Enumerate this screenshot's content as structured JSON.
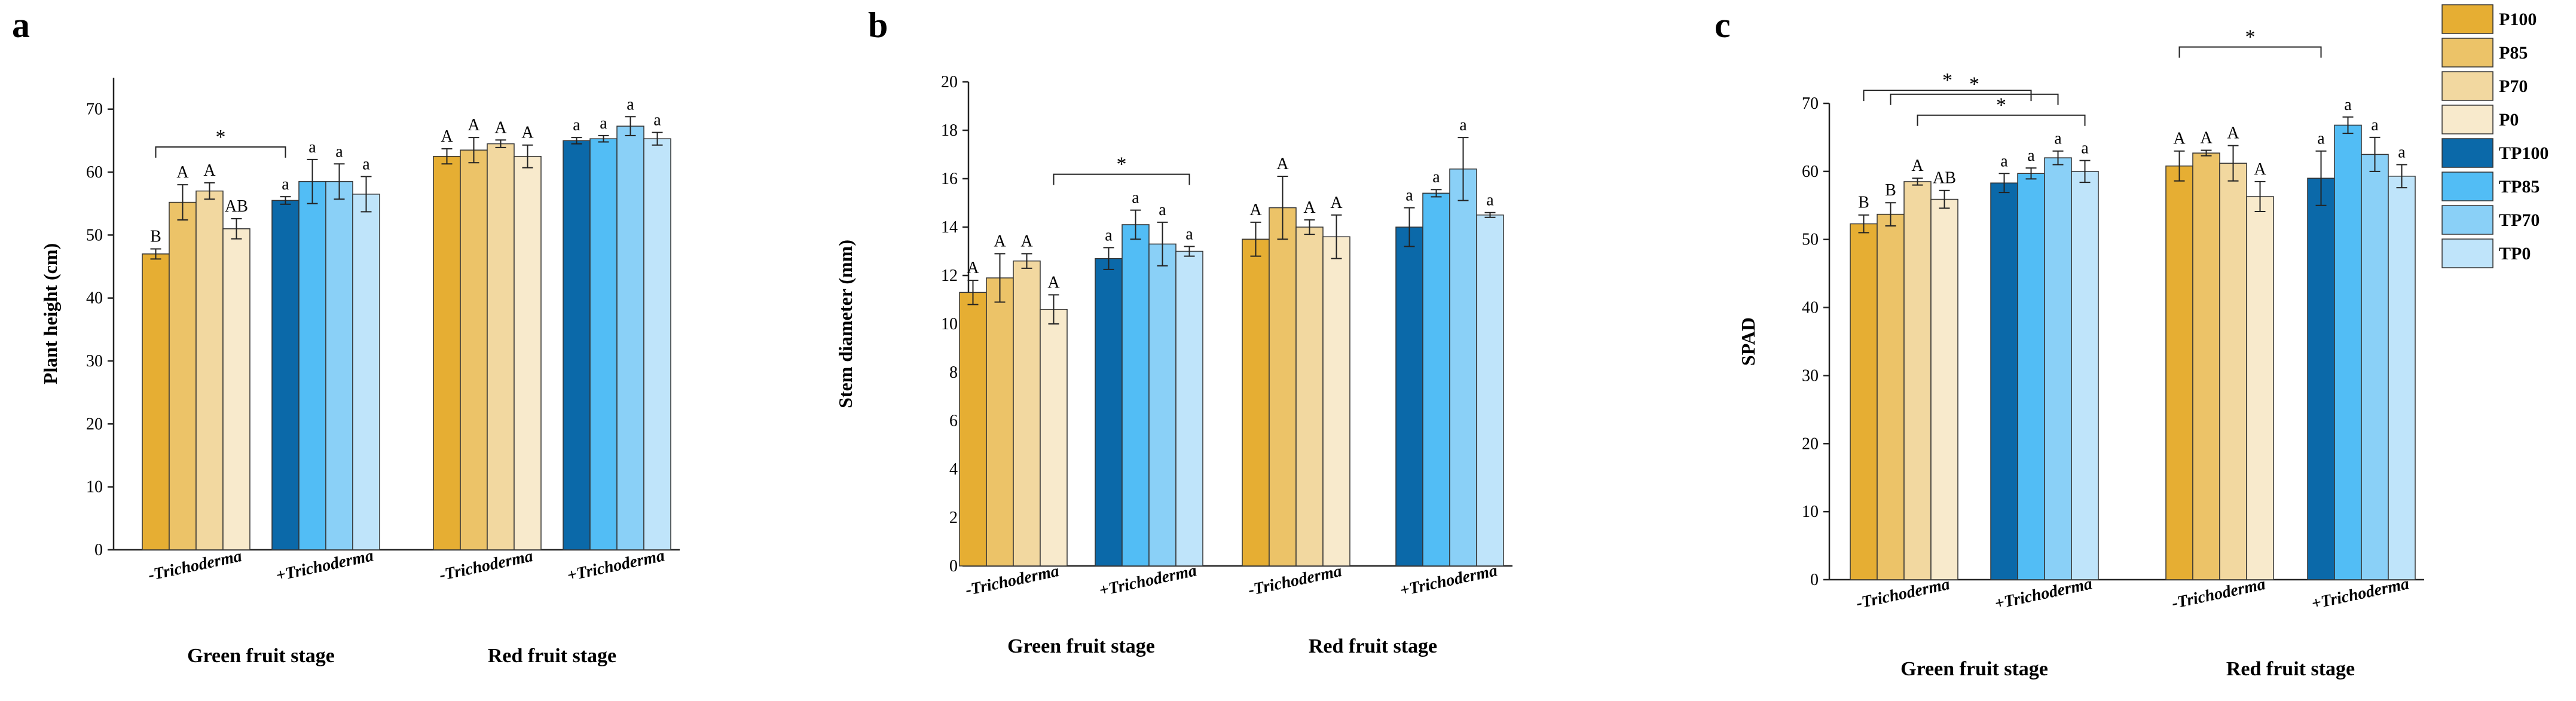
{
  "colors": {
    "P100": "#E6AE33",
    "P85": "#ECC368",
    "P70": "#F2D8A0",
    "P0": "#F8EACC",
    "TP100": "#0B69A9",
    "TP85": "#52BDF5",
    "TP70": "#8AD0F7",
    "TP0": "#BFE4FA"
  },
  "legend": [
    {
      "label": "P100",
      "key": "P100"
    },
    {
      "label": "P85",
      "key": "P85"
    },
    {
      "label": "P70",
      "key": "P70"
    },
    {
      "label": "P0",
      "key": "P0"
    },
    {
      "label": "TP100",
      "key": "TP100"
    },
    {
      "label": "TP85",
      "key": "TP85"
    },
    {
      "label": "TP70",
      "key": "TP70"
    },
    {
      "label": "TP0",
      "key": "TP0"
    }
  ],
  "chart_data": [
    {
      "panel": "a",
      "type": "bar",
      "ylabel": "Plant height (cm)",
      "ylim": [
        0,
        75
      ],
      "yticks": [
        0,
        10,
        20,
        30,
        40,
        50,
        60,
        70
      ],
      "stages": [
        "Green fruit stage",
        "Red fruit stage"
      ],
      "groups": [
        {
          "stage": 0,
          "label": "-Trichoderma",
          "series": [
            "P100",
            "P85",
            "P70",
            "P0"
          ],
          "values": [
            47,
            55.2,
            57,
            51
          ],
          "errors": [
            0.8,
            2.8,
            1.3,
            1.6
          ],
          "letters": [
            "B",
            "A",
            "A",
            "AB"
          ]
        },
        {
          "stage": 0,
          "label": "+Trichoderma",
          "series": [
            "TP100",
            "TP85",
            "TP70",
            "TP0"
          ],
          "values": [
            55.5,
            58.5,
            58.5,
            56.5
          ],
          "errors": [
            0.6,
            3.5,
            2.8,
            2.8
          ],
          "letters": [
            "a",
            "a",
            "a",
            "a"
          ]
        },
        {
          "stage": 1,
          "label": "-Trichoderma",
          "series": [
            "P100",
            "P85",
            "P70",
            "P0"
          ],
          "values": [
            62.5,
            63.5,
            64.5,
            62.5
          ],
          "errors": [
            1.2,
            2.0,
            0.6,
            1.8
          ],
          "letters": [
            "A",
            "A",
            "A",
            "A"
          ]
        },
        {
          "stage": 1,
          "label": "+Trichoderma",
          "series": [
            "TP100",
            "TP85",
            "TP70",
            "TP0"
          ],
          "values": [
            65,
            65.3,
            67.3,
            65.3
          ],
          "errors": [
            0.5,
            0.5,
            1.5,
            1.0
          ],
          "letters": [
            "a",
            "a",
            "a",
            "a"
          ]
        }
      ],
      "sig": [
        {
          "from": [
            0,
            0
          ],
          "to": [
            1,
            0
          ],
          "label": "*"
        }
      ]
    },
    {
      "panel": "b",
      "type": "bar",
      "ylabel": "Stem diameter (mm)",
      "ylim": [
        0,
        20
      ],
      "yticks": [
        0,
        2,
        4,
        6,
        8,
        10,
        12,
        14,
        16,
        18,
        20
      ],
      "stages": [
        "Green fruit stage",
        "Red fruit stage"
      ],
      "groups": [
        {
          "stage": 0,
          "label": "-Trichoderma",
          "series": [
            "P100",
            "P85",
            "P70",
            "P0"
          ],
          "values": [
            11.3,
            11.9,
            12.6,
            10.6
          ],
          "errors": [
            0.5,
            1.0,
            0.3,
            0.6
          ],
          "letters": [
            "A",
            "A",
            "A",
            "A"
          ]
        },
        {
          "stage": 0,
          "label": "+Trichoderma",
          "series": [
            "TP100",
            "TP85",
            "TP70",
            "TP0"
          ],
          "values": [
            12.7,
            14.1,
            13.3,
            13.0
          ],
          "errors": [
            0.45,
            0.6,
            0.9,
            0.2
          ],
          "letters": [
            "a",
            "a",
            "a",
            "a"
          ]
        },
        {
          "stage": 1,
          "label": "-Trichoderma",
          "series": [
            "P100",
            "P85",
            "P70",
            "P0"
          ],
          "values": [
            13.5,
            14.8,
            14.0,
            13.6
          ],
          "errors": [
            0.7,
            1.3,
            0.3,
            0.9
          ],
          "letters": [
            "A",
            "A",
            "A",
            "A"
          ]
        },
        {
          "stage": 1,
          "label": "+Trichoderma",
          "series": [
            "TP100",
            "TP85",
            "TP70",
            "TP0"
          ],
          "values": [
            14.0,
            15.4,
            16.4,
            14.5
          ],
          "errors": [
            0.8,
            0.15,
            1.3,
            0.1
          ],
          "letters": [
            "a",
            "a",
            "a",
            "a"
          ]
        }
      ],
      "sig": [
        {
          "from": [
            0,
            3
          ],
          "to": [
            1,
            3
          ],
          "label": "*"
        }
      ]
    },
    {
      "panel": "c",
      "type": "bar",
      "ylabel": "SPAD",
      "ylim": [
        0,
        70
      ],
      "yticks": [
        0,
        10,
        20,
        30,
        40,
        50,
        60,
        70
      ],
      "stages": [
        "Green fruit stage",
        "Red fruit stage"
      ],
      "groups": [
        {
          "stage": 0,
          "label": "-Trichoderma",
          "series": [
            "P100",
            "P85",
            "P70",
            "P0"
          ],
          "values": [
            52.3,
            53.7,
            58.5,
            55.9
          ],
          "errors": [
            1.3,
            1.7,
            0.5,
            1.3
          ],
          "letters": [
            "B",
            "B",
            "A",
            "AB"
          ]
        },
        {
          "stage": 0,
          "label": "+Trichoderma",
          "series": [
            "TP100",
            "TP85",
            "TP70",
            "TP0"
          ],
          "values": [
            58.3,
            59.7,
            62.0,
            60.0
          ],
          "errors": [
            1.4,
            0.8,
            1.0,
            1.6
          ],
          "letters": [
            "a",
            "a",
            "a",
            "a"
          ]
        },
        {
          "stage": 1,
          "label": "-Trichoderma",
          "series": [
            "P100",
            "P85",
            "P70",
            "P0"
          ],
          "values": [
            60.8,
            62.7,
            61.2,
            56.3
          ],
          "errors": [
            2.2,
            0.4,
            2.6,
            2.2
          ],
          "letters": [
            "A",
            "A",
            "A",
            "A"
          ]
        },
        {
          "stage": 1,
          "label": "+Trichoderma",
          "series": [
            "TP100",
            "TP85",
            "TP70",
            "TP0"
          ],
          "values": [
            59.0,
            66.8,
            62.5,
            59.3
          ],
          "errors": [
            4.0,
            1.2,
            2.5,
            1.7
          ],
          "letters": [
            "a",
            "a",
            "a",
            "a"
          ]
        }
      ],
      "sig": [
        {
          "from": [
            0,
            2
          ],
          "to": [
            1,
            3
          ],
          "label": "*"
        },
        {
          "from": [
            0,
            1
          ],
          "to": [
            1,
            2
          ],
          "label": "*"
        },
        {
          "from": [
            0,
            0
          ],
          "to": [
            1,
            1
          ],
          "label": "*"
        },
        {
          "from": [
            2,
            0
          ],
          "to": [
            3,
            0
          ],
          "label": "*"
        }
      ]
    }
  ]
}
